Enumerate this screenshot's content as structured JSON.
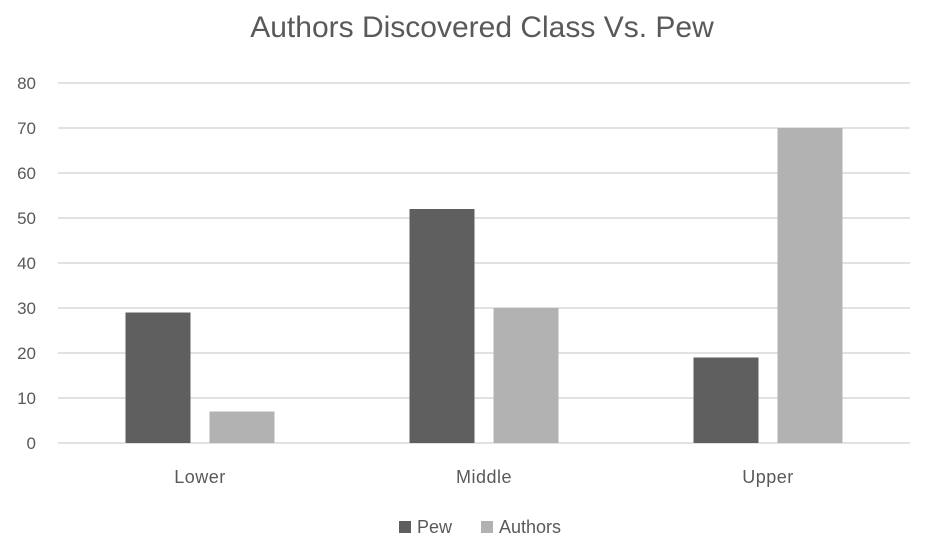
{
  "chart_data": {
    "type": "bar",
    "title": "Authors Discovered Class Vs. Pew",
    "categories": [
      "Lower",
      "Middle",
      "Upper"
    ],
    "series": [
      {
        "name": "Pew",
        "values": [
          29,
          52,
          19
        ],
        "color": "#5f5f5f"
      },
      {
        "name": "Authors",
        "values": [
          7,
          30,
          70
        ],
        "color": "#b2b2b2"
      }
    ],
    "ylim": [
      0,
      80
    ],
    "yticks": [
      0,
      10,
      20,
      30,
      40,
      50,
      60,
      70,
      80
    ],
    "grid": true,
    "legend_position": "bottom"
  }
}
